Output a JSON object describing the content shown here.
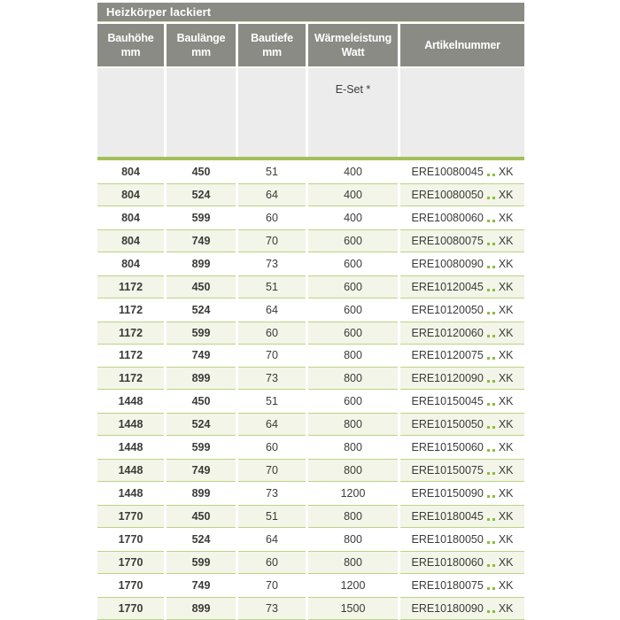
{
  "title": "Heizkörper lackiert",
  "table": {
    "columns": [
      {
        "key": "bauhoehe",
        "label": "Bauhöhe",
        "unit": "mm"
      },
      {
        "key": "baulaenge",
        "label": "Baulänge",
        "unit": "mm"
      },
      {
        "key": "bautiefe",
        "label": "Bautiefe",
        "unit": "mm"
      },
      {
        "key": "watt",
        "label": "Wärmeleistung",
        "unit": "Watt"
      },
      {
        "key": "artikel",
        "label": "Artikelnummer",
        "unit": ""
      }
    ],
    "subheader": {
      "e_set_label": "E-Set *"
    },
    "artikel_suffix": "XK",
    "rows": [
      {
        "bauhoehe": "804",
        "baulaenge": "450",
        "bautiefe": "51",
        "watt": "400",
        "artikel_prefix": "ERE10080045",
        "artikel_suffix": "XK"
      },
      {
        "bauhoehe": "804",
        "baulaenge": "524",
        "bautiefe": "64",
        "watt": "400",
        "artikel_prefix": "ERE10080050",
        "artikel_suffix": "XK"
      },
      {
        "bauhoehe": "804",
        "baulaenge": "599",
        "bautiefe": "60",
        "watt": "400",
        "artikel_prefix": "ERE10080060",
        "artikel_suffix": "XK"
      },
      {
        "bauhoehe": "804",
        "baulaenge": "749",
        "bautiefe": "70",
        "watt": "600",
        "artikel_prefix": "ERE10080075",
        "artikel_suffix": "XK"
      },
      {
        "bauhoehe": "804",
        "baulaenge": "899",
        "bautiefe": "73",
        "watt": "600",
        "artikel_prefix": "ERE10080090",
        "artikel_suffix": "XK"
      },
      {
        "bauhoehe": "1172",
        "baulaenge": "450",
        "bautiefe": "51",
        "watt": "600",
        "artikel_prefix": "ERE10120045",
        "artikel_suffix": "XK"
      },
      {
        "bauhoehe": "1172",
        "baulaenge": "524",
        "bautiefe": "64",
        "watt": "600",
        "artikel_prefix": "ERE10120050",
        "artikel_suffix": "XK"
      },
      {
        "bauhoehe": "1172",
        "baulaenge": "599",
        "bautiefe": "60",
        "watt": "600",
        "artikel_prefix": "ERE10120060",
        "artikel_suffix": "XK"
      },
      {
        "bauhoehe": "1172",
        "baulaenge": "749",
        "bautiefe": "70",
        "watt": "800",
        "artikel_prefix": "ERE10120075",
        "artikel_suffix": "XK"
      },
      {
        "bauhoehe": "1172",
        "baulaenge": "899",
        "bautiefe": "73",
        "watt": "800",
        "artikel_prefix": "ERE10120090",
        "artikel_suffix": "XK"
      },
      {
        "bauhoehe": "1448",
        "baulaenge": "450",
        "bautiefe": "51",
        "watt": "600",
        "artikel_prefix": "ERE10150045",
        "artikel_suffix": "XK"
      },
      {
        "bauhoehe": "1448",
        "baulaenge": "524",
        "bautiefe": "64",
        "watt": "800",
        "artikel_prefix": "ERE10150050",
        "artikel_suffix": "XK"
      },
      {
        "bauhoehe": "1448",
        "baulaenge": "599",
        "bautiefe": "60",
        "watt": "800",
        "artikel_prefix": "ERE10150060",
        "artikel_suffix": "XK"
      },
      {
        "bauhoehe": "1448",
        "baulaenge": "749",
        "bautiefe": "70",
        "watt": "800",
        "artikel_prefix": "ERE10150075",
        "artikel_suffix": "XK"
      },
      {
        "bauhoehe": "1448",
        "baulaenge": "899",
        "bautiefe": "73",
        "watt": "1200",
        "artikel_prefix": "ERE10150090",
        "artikel_suffix": "XK"
      },
      {
        "bauhoehe": "1770",
        "baulaenge": "450",
        "bautiefe": "51",
        "watt": "800",
        "artikel_prefix": "ERE10180045",
        "artikel_suffix": "XK"
      },
      {
        "bauhoehe": "1770",
        "baulaenge": "524",
        "bautiefe": "64",
        "watt": "800",
        "artikel_prefix": "ERE10180050",
        "artikel_suffix": "XK"
      },
      {
        "bauhoehe": "1770",
        "baulaenge": "599",
        "bautiefe": "60",
        "watt": "800",
        "artikel_prefix": "ERE10180060",
        "artikel_suffix": "XK"
      },
      {
        "bauhoehe": "1770",
        "baulaenge": "749",
        "bautiefe": "70",
        "watt": "1200",
        "artikel_prefix": "ERE10180075",
        "artikel_suffix": "XK"
      },
      {
        "bauhoehe": "1770",
        "baulaenge": "899",
        "bautiefe": "73",
        "watt": "1500",
        "artikel_prefix": "ERE10180090",
        "artikel_suffix": "XK"
      }
    ]
  },
  "colors": {
    "header_gray": "#8b8b86",
    "subheader_gray": "#ececec",
    "accent_green": "#a3c058",
    "hairline_green": "#bdd385",
    "row_tint": "#f2f5e8",
    "dot_green": "#8fbb41",
    "text_dark": "#3b3b39"
  }
}
